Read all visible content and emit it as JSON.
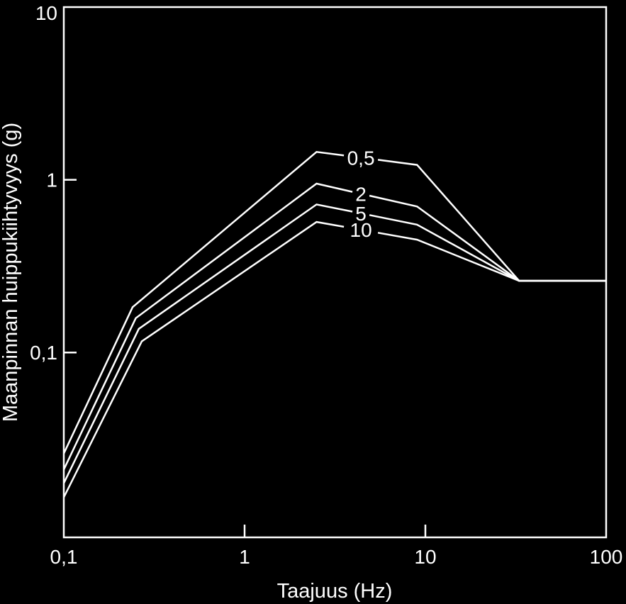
{
  "chart_data": {
    "type": "line",
    "xlabel": "Taajuus (Hz)",
    "ylabel": "Maanpinnan huippukiihtyvyys (g)",
    "x_scale": "log",
    "y_scale": "log",
    "xlim": [
      0.1,
      100
    ],
    "ylim": [
      0.0085,
      10
    ],
    "x_ticks": [
      {
        "value": 0.1,
        "label": "0,1"
      },
      {
        "value": 1,
        "label": "1"
      },
      {
        "value": 10,
        "label": "10"
      },
      {
        "value": 100,
        "label": "100"
      }
    ],
    "y_ticks": [
      {
        "value": 0.1,
        "label": "0,1"
      },
      {
        "value": 1,
        "label": "1"
      },
      {
        "value": 10,
        "label": "10"
      }
    ],
    "grid": false,
    "legend": "inline labels",
    "background_color": "#000000",
    "foreground_color": "#ffffff",
    "series": [
      {
        "name": "0,5",
        "x": [
          0.1,
          0.24,
          2.5,
          9,
          33,
          100
        ],
        "y": [
          0.026,
          0.183,
          1.45,
          1.22,
          0.26,
          0.26
        ],
        "label_at": 4.4
      },
      {
        "name": "2",
        "x": [
          0.1,
          0.25,
          2.5,
          9,
          33,
          100
        ],
        "y": [
          0.021,
          0.158,
          0.95,
          0.7,
          0.26,
          0.26
        ],
        "label_at": 4.4
      },
      {
        "name": "5",
        "x": [
          0.1,
          0.26,
          2.5,
          9,
          33,
          100
        ],
        "y": [
          0.0175,
          0.137,
          0.72,
          0.55,
          0.26,
          0.26
        ],
        "label_at": 4.4
      },
      {
        "name": "10",
        "x": [
          0.1,
          0.27,
          2.5,
          9,
          33,
          100
        ],
        "y": [
          0.0145,
          0.116,
          0.57,
          0.45,
          0.26,
          0.26
        ],
        "label_at": 4.4
      }
    ]
  }
}
